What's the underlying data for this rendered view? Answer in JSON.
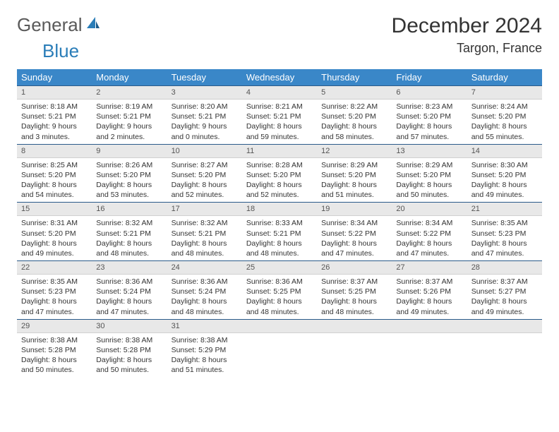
{
  "brand": {
    "general": "General",
    "blue": "Blue"
  },
  "title": "December 2024",
  "location": "Targon, France",
  "colors": {
    "header_bg": "#3a87c8",
    "header_text": "#ffffff",
    "daynum_bg": "#e8e8e8",
    "row_border": "#2a5a8a",
    "logo_gray": "#5a5a5a",
    "logo_blue": "#2a7db8"
  },
  "weekdays": [
    "Sunday",
    "Monday",
    "Tuesday",
    "Wednesday",
    "Thursday",
    "Friday",
    "Saturday"
  ],
  "days": [
    {
      "n": "1",
      "sunrise": "8:18 AM",
      "sunset": "5:21 PM",
      "dl": "9 hours and 3 minutes."
    },
    {
      "n": "2",
      "sunrise": "8:19 AM",
      "sunset": "5:21 PM",
      "dl": "9 hours and 2 minutes."
    },
    {
      "n": "3",
      "sunrise": "8:20 AM",
      "sunset": "5:21 PM",
      "dl": "9 hours and 0 minutes."
    },
    {
      "n": "4",
      "sunrise": "8:21 AM",
      "sunset": "5:21 PM",
      "dl": "8 hours and 59 minutes."
    },
    {
      "n": "5",
      "sunrise": "8:22 AM",
      "sunset": "5:20 PM",
      "dl": "8 hours and 58 minutes."
    },
    {
      "n": "6",
      "sunrise": "8:23 AM",
      "sunset": "5:20 PM",
      "dl": "8 hours and 57 minutes."
    },
    {
      "n": "7",
      "sunrise": "8:24 AM",
      "sunset": "5:20 PM",
      "dl": "8 hours and 55 minutes."
    },
    {
      "n": "8",
      "sunrise": "8:25 AM",
      "sunset": "5:20 PM",
      "dl": "8 hours and 54 minutes."
    },
    {
      "n": "9",
      "sunrise": "8:26 AM",
      "sunset": "5:20 PM",
      "dl": "8 hours and 53 minutes."
    },
    {
      "n": "10",
      "sunrise": "8:27 AM",
      "sunset": "5:20 PM",
      "dl": "8 hours and 52 minutes."
    },
    {
      "n": "11",
      "sunrise": "8:28 AM",
      "sunset": "5:20 PM",
      "dl": "8 hours and 52 minutes."
    },
    {
      "n": "12",
      "sunrise": "8:29 AM",
      "sunset": "5:20 PM",
      "dl": "8 hours and 51 minutes."
    },
    {
      "n": "13",
      "sunrise": "8:29 AM",
      "sunset": "5:20 PM",
      "dl": "8 hours and 50 minutes."
    },
    {
      "n": "14",
      "sunrise": "8:30 AM",
      "sunset": "5:20 PM",
      "dl": "8 hours and 49 minutes."
    },
    {
      "n": "15",
      "sunrise": "8:31 AM",
      "sunset": "5:20 PM",
      "dl": "8 hours and 49 minutes."
    },
    {
      "n": "16",
      "sunrise": "8:32 AM",
      "sunset": "5:21 PM",
      "dl": "8 hours and 48 minutes."
    },
    {
      "n": "17",
      "sunrise": "8:32 AM",
      "sunset": "5:21 PM",
      "dl": "8 hours and 48 minutes."
    },
    {
      "n": "18",
      "sunrise": "8:33 AM",
      "sunset": "5:21 PM",
      "dl": "8 hours and 48 minutes."
    },
    {
      "n": "19",
      "sunrise": "8:34 AM",
      "sunset": "5:22 PM",
      "dl": "8 hours and 47 minutes."
    },
    {
      "n": "20",
      "sunrise": "8:34 AM",
      "sunset": "5:22 PM",
      "dl": "8 hours and 47 minutes."
    },
    {
      "n": "21",
      "sunrise": "8:35 AM",
      "sunset": "5:23 PM",
      "dl": "8 hours and 47 minutes."
    },
    {
      "n": "22",
      "sunrise": "8:35 AM",
      "sunset": "5:23 PM",
      "dl": "8 hours and 47 minutes."
    },
    {
      "n": "23",
      "sunrise": "8:36 AM",
      "sunset": "5:24 PM",
      "dl": "8 hours and 47 minutes."
    },
    {
      "n": "24",
      "sunrise": "8:36 AM",
      "sunset": "5:24 PM",
      "dl": "8 hours and 48 minutes."
    },
    {
      "n": "25",
      "sunrise": "8:36 AM",
      "sunset": "5:25 PM",
      "dl": "8 hours and 48 minutes."
    },
    {
      "n": "26",
      "sunrise": "8:37 AM",
      "sunset": "5:25 PM",
      "dl": "8 hours and 48 minutes."
    },
    {
      "n": "27",
      "sunrise": "8:37 AM",
      "sunset": "5:26 PM",
      "dl": "8 hours and 49 minutes."
    },
    {
      "n": "28",
      "sunrise": "8:37 AM",
      "sunset": "5:27 PM",
      "dl": "8 hours and 49 minutes."
    },
    {
      "n": "29",
      "sunrise": "8:38 AM",
      "sunset": "5:28 PM",
      "dl": "8 hours and 50 minutes."
    },
    {
      "n": "30",
      "sunrise": "8:38 AM",
      "sunset": "5:28 PM",
      "dl": "8 hours and 50 minutes."
    },
    {
      "n": "31",
      "sunrise": "8:38 AM",
      "sunset": "5:29 PM",
      "dl": "8 hours and 51 minutes."
    }
  ],
  "labels": {
    "sunrise": "Sunrise:",
    "sunset": "Sunset:",
    "daylight": "Daylight:"
  },
  "grid": {
    "cols": 7,
    "rows": 5,
    "start_offset": 0,
    "total_cells": 35
  }
}
